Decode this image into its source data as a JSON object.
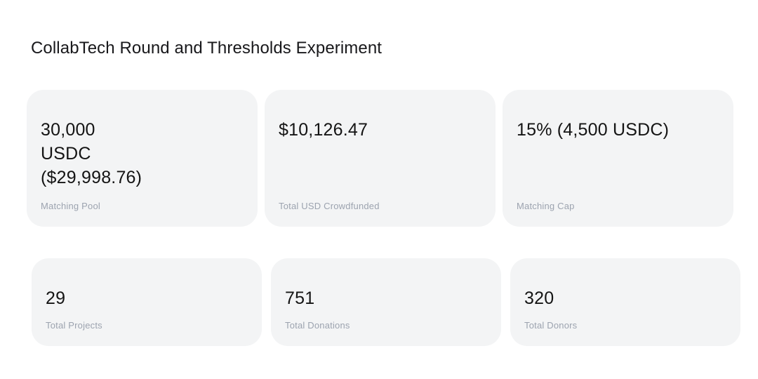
{
  "page": {
    "title": "CollabTech Round and Thresholds Experiment"
  },
  "colors": {
    "page_background": "#ffffff",
    "card_background": "#f3f4f5",
    "value_text": "#141414",
    "label_text": "#9ca3af",
    "title_text": "#18181b"
  },
  "stats_row_1": [
    {
      "value": "30,000\nUSDC\n($29,998.76)",
      "label": "Matching Pool"
    },
    {
      "value": "$10,126.47",
      "label": "Total USD Crowdfunded"
    },
    {
      "value": "15% (4,500 USDC)",
      "label": "Matching Cap"
    }
  ],
  "stats_row_2": [
    {
      "value": "29",
      "label": "Total Projects"
    },
    {
      "value": "751",
      "label": "Total Donations"
    },
    {
      "value": "320",
      "label": "Total Donors"
    }
  ]
}
